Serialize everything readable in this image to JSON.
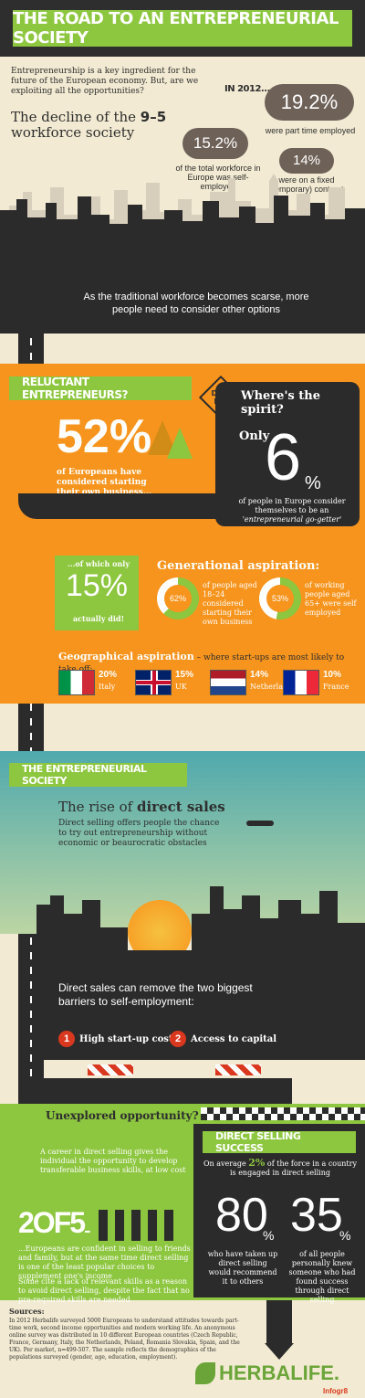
{
  "header": {
    "title": "THE ROAD TO AN ENTREPRENEURIAL SOCIETY"
  },
  "intro": {
    "text": "Entrepreneurship is a key ingredient for the future of the European economy. But, are we exploiting all the opportunities?",
    "decline_prefix": "The decline of the ",
    "decline_strong": "9–5",
    "decline_suffix": " workforce society"
  },
  "stats_2012": {
    "label": "IN 2012...",
    "self_employed": "15.2%",
    "self_employed_text": "of the total workforce in Europe was self-employed",
    "part_time": "19.2%",
    "part_time_text": "were part time employed",
    "fixed": "14%",
    "fixed_text": "were on a fixed (temporary) contract"
  },
  "city_caption": "As the traditional workforce becomes scarse, more people need to consider other options",
  "reluctant": {
    "title": "RELUCTANT ENTREPRENEURS?",
    "pct": "52%",
    "text": "of Europeans have considered starting their own business...",
    "dead_end": "DEAD END",
    "spirit_title": "Where's the spirit?",
    "only": "Only",
    "six": "6",
    "six_pct": "%",
    "spirit_text": "of people in Europe consider themselves to be an",
    "spirit_quote": "'entrepreneurial go-getter'"
  },
  "only15": {
    "lead": "...of which only",
    "pct": "15%",
    "tail": "actually did!"
  },
  "generational": {
    "title": "Generational aspiration:",
    "a_pct": "62%",
    "a_text": "of people aged 18–24 considered starting their own business",
    "b_pct": "53%",
    "b_text": "of working people aged 65+ were self employed"
  },
  "geo": {
    "title": "Geographical aspiration",
    "subtitle": " – where start-ups are most likely to take off:",
    "countries": [
      {
        "pct": "20%",
        "name": "Italy"
      },
      {
        "pct": "15%",
        "name": "UK"
      },
      {
        "pct": "14%",
        "name": "Netherlands"
      },
      {
        "pct": "10%",
        "name": "France"
      }
    ]
  },
  "society": {
    "title": "THE ENTREPRENEURIAL SOCIETY",
    "rise_prefix": "The rise of ",
    "rise_strong": "direct sales",
    "rise_text": "Direct selling offers people the chance to try out entrepreneurship without economic or beaurocratic obstacles",
    "barriers": "Direct sales can remove the two biggest barriers to self-employment:",
    "b1_num": "1",
    "b1": "High start-up costs",
    "b2_num": "2",
    "b2": "Access to capital"
  },
  "unexplored": {
    "title": "Unexplored opportunity?",
    "text": "A career in direct selling gives the individual the opportunity to develop transferable business skills, at low cost",
    "two_of_five": "2OF5",
    "dots": "...",
    "confident": "...Europeans are confident in selling to friends and family, but at the same time direct selling is one of the least popular choices to supplement one's income",
    "lack": "Some cite a lack of relevant skills as a reason to avoid direct selling, despite the fact that no pre-required skills are needed"
  },
  "success": {
    "title": "DIRECT SELLING SUCCESS",
    "avg_prefix": "On average ",
    "avg_strong": "2%",
    "avg_suffix": " of the force in a country is engaged in direct selling",
    "a_num": "80",
    "a_pct": "%",
    "a_text": "who have taken up direct selling would recommend it to others",
    "b_num": "35",
    "b_pct": "%",
    "b_text": "of all people personally knew someone who had found success through direct selling"
  },
  "sources": {
    "title": "Sources:",
    "text": "In 2012 Herbalife surveyed 5000 Europeans to understand attitudes towards part-time work, second income opportunities and modern working life. An anonymous online survey was distributed in 10 different European countries (Czech Republic, France, Germany, Italy, the Netherlands, Poland, Romania Slovakia, Spain, and the UK). Per market, n=499-507. The sample reflects the demographics of the populations surveyed (gender, age, education, employment)."
  },
  "brand": {
    "name": "HERBALIFE.",
    "credit": "Infogr8"
  },
  "colors": {
    "green": "#8dc63f",
    "orange": "#f7941d",
    "dark": "#2b2b2b",
    "red": "#d9381e"
  }
}
